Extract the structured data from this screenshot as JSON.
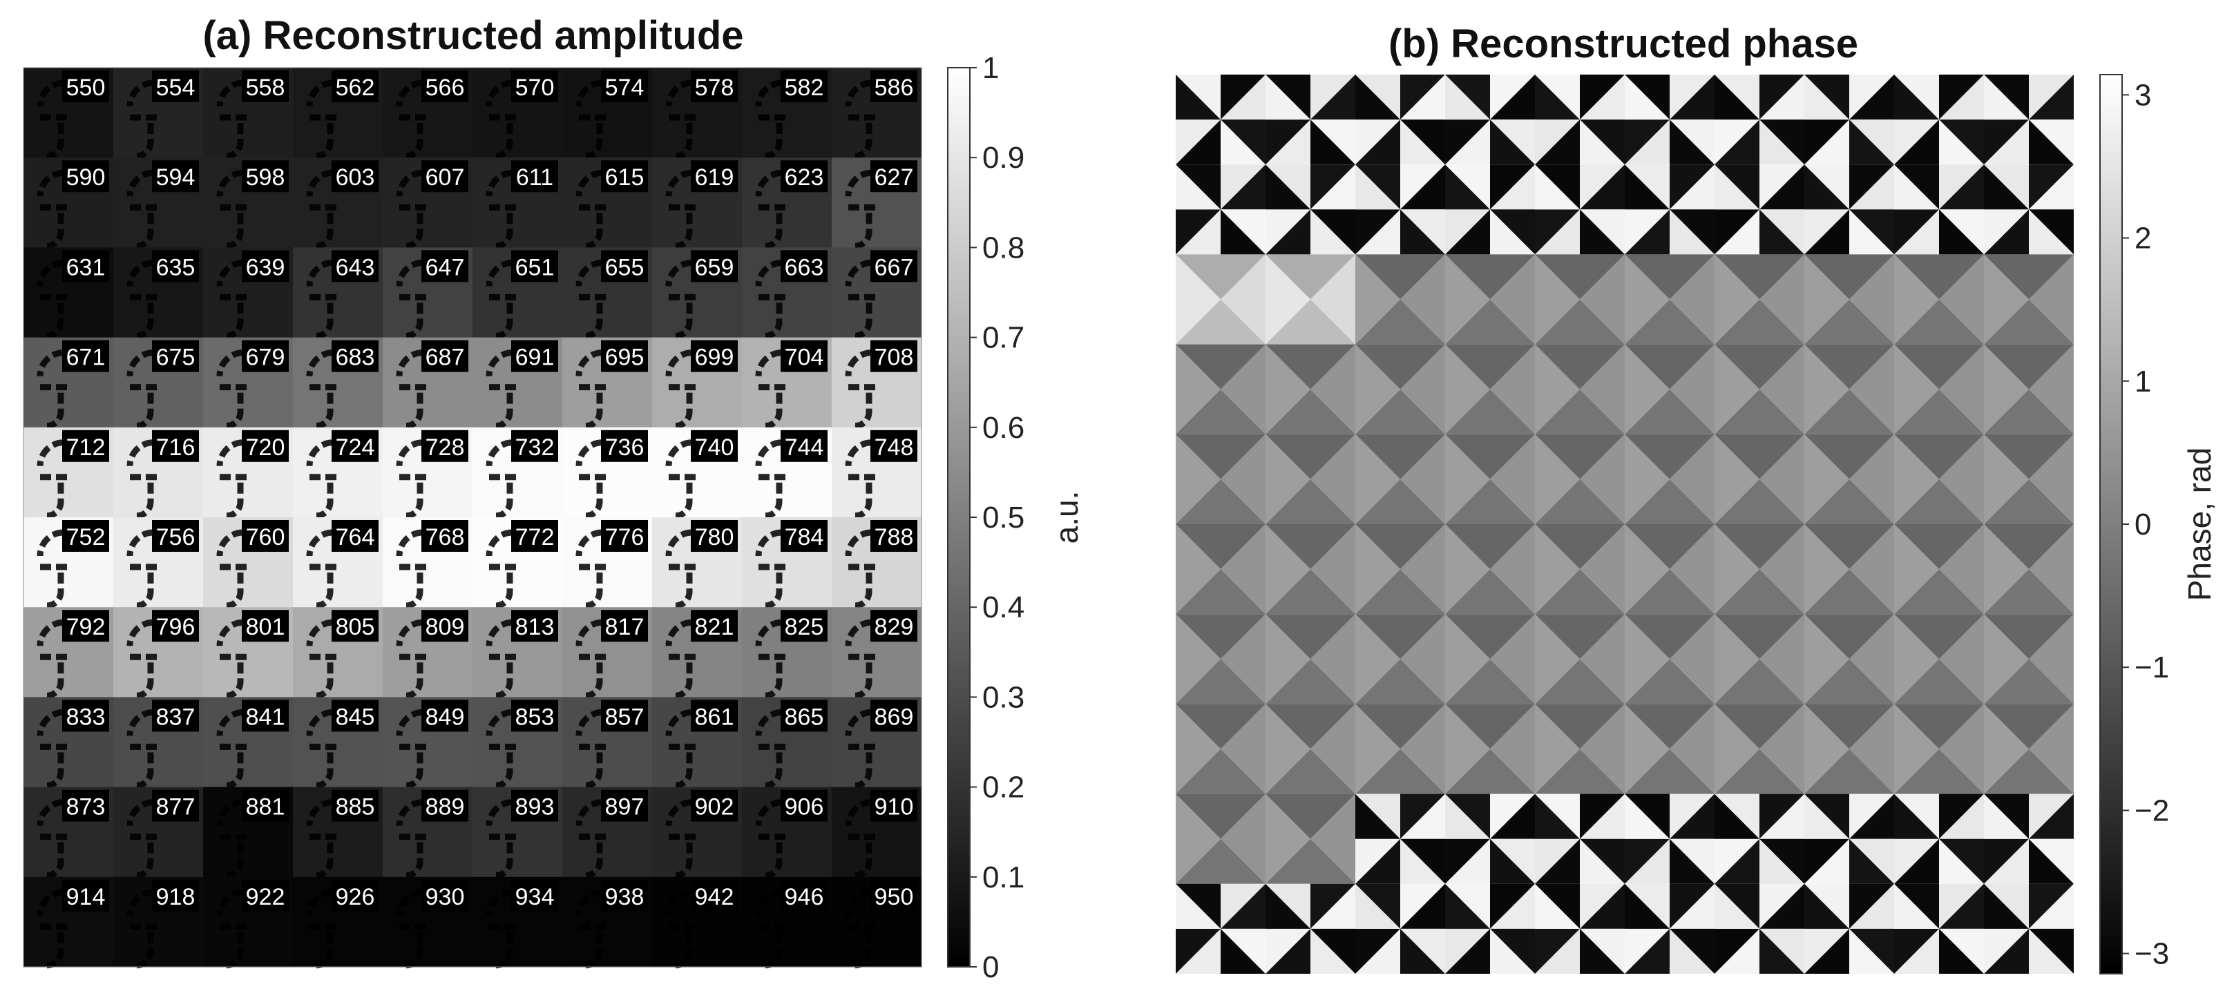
{
  "chart_data": [
    {
      "type": "heatmap",
      "title": "(a) Reconstructed amplitude",
      "grid": {
        "rows": 10,
        "cols": 10
      },
      "cell_labels": [
        [
          "550",
          "554",
          "558",
          "562",
          "566",
          "570",
          "574",
          "578",
          "582",
          "586"
        ],
        [
          "590",
          "594",
          "598",
          "603",
          "607",
          "611",
          "615",
          "619",
          "623",
          "627"
        ],
        [
          "631",
          "635",
          "639",
          "643",
          "647",
          "651",
          "655",
          "659",
          "663",
          "667"
        ],
        [
          "671",
          "675",
          "679",
          "683",
          "687",
          "691",
          "695",
          "699",
          "704",
          "708"
        ],
        [
          "712",
          "716",
          "720",
          "724",
          "728",
          "732",
          "736",
          "740",
          "744",
          "748"
        ],
        [
          "752",
          "756",
          "760",
          "764",
          "768",
          "772",
          "776",
          "780",
          "784",
          "788"
        ],
        [
          "792",
          "796",
          "801",
          "805",
          "809",
          "813",
          "817",
          "821",
          "825",
          "829"
        ],
        [
          "833",
          "837",
          "841",
          "845",
          "849",
          "853",
          "857",
          "861",
          "865",
          "869"
        ],
        [
          "873",
          "877",
          "881",
          "885",
          "889",
          "893",
          "897",
          "902",
          "906",
          "910"
        ],
        [
          "914",
          "918",
          "922",
          "926",
          "930",
          "934",
          "938",
          "942",
          "946",
          "950"
        ]
      ],
      "values": [
        [
          0.08,
          0.14,
          0.12,
          0.1,
          0.09,
          0.08,
          0.07,
          0.09,
          0.1,
          0.12
        ],
        [
          0.12,
          0.13,
          0.13,
          0.13,
          0.14,
          0.15,
          0.15,
          0.17,
          0.2,
          0.32
        ],
        [
          0.05,
          0.09,
          0.12,
          0.2,
          0.26,
          0.2,
          0.2,
          0.24,
          0.26,
          0.28
        ],
        [
          0.36,
          0.38,
          0.42,
          0.46,
          0.55,
          0.55,
          0.62,
          0.68,
          0.7,
          0.82
        ],
        [
          0.88,
          0.9,
          0.92,
          0.94,
          0.96,
          0.98,
          0.99,
          0.99,
          0.99,
          0.92
        ],
        [
          0.97,
          0.92,
          0.86,
          0.93,
          0.98,
          0.99,
          0.98,
          0.9,
          0.88,
          0.84
        ],
        [
          0.62,
          0.7,
          0.72,
          0.67,
          0.62,
          0.6,
          0.57,
          0.52,
          0.5,
          0.52
        ],
        [
          0.28,
          0.3,
          0.31,
          0.32,
          0.33,
          0.32,
          0.3,
          0.28,
          0.26,
          0.27
        ],
        [
          0.16,
          0.14,
          0.03,
          0.11,
          0.18,
          0.2,
          0.16,
          0.15,
          0.12,
          0.08
        ],
        [
          0.05,
          0.04,
          0.03,
          0.02,
          0.02,
          0.02,
          0.02,
          0.01,
          0.01,
          0.01
        ]
      ],
      "colorbar": {
        "label": "a.u.",
        "range": [
          0,
          1
        ],
        "ticks": [
          "0",
          "0.1",
          "0.2",
          "0.3",
          "0.4",
          "0.5",
          "0.6",
          "0.7",
          "0.8",
          "0.9",
          "1"
        ]
      },
      "colormap": "gray"
    },
    {
      "type": "heatmap",
      "title": "(b) Reconstructed phase",
      "grid": {
        "rows": 10,
        "cols": 10
      },
      "row_pattern": [
        "wrapped",
        "wrapped",
        "smooth-bright",
        "smooth",
        "smooth",
        "smooth",
        "smooth",
        "smooth",
        "mixed",
        "wrapped"
      ],
      "colorbar": {
        "label": "Phase, rad",
        "range": [
          -3.1416,
          3.1416
        ],
        "ticks": [
          "3",
          "2",
          "1",
          "0",
          "−1",
          "−2",
          "−3"
        ]
      },
      "colormap": "gray"
    }
  ]
}
